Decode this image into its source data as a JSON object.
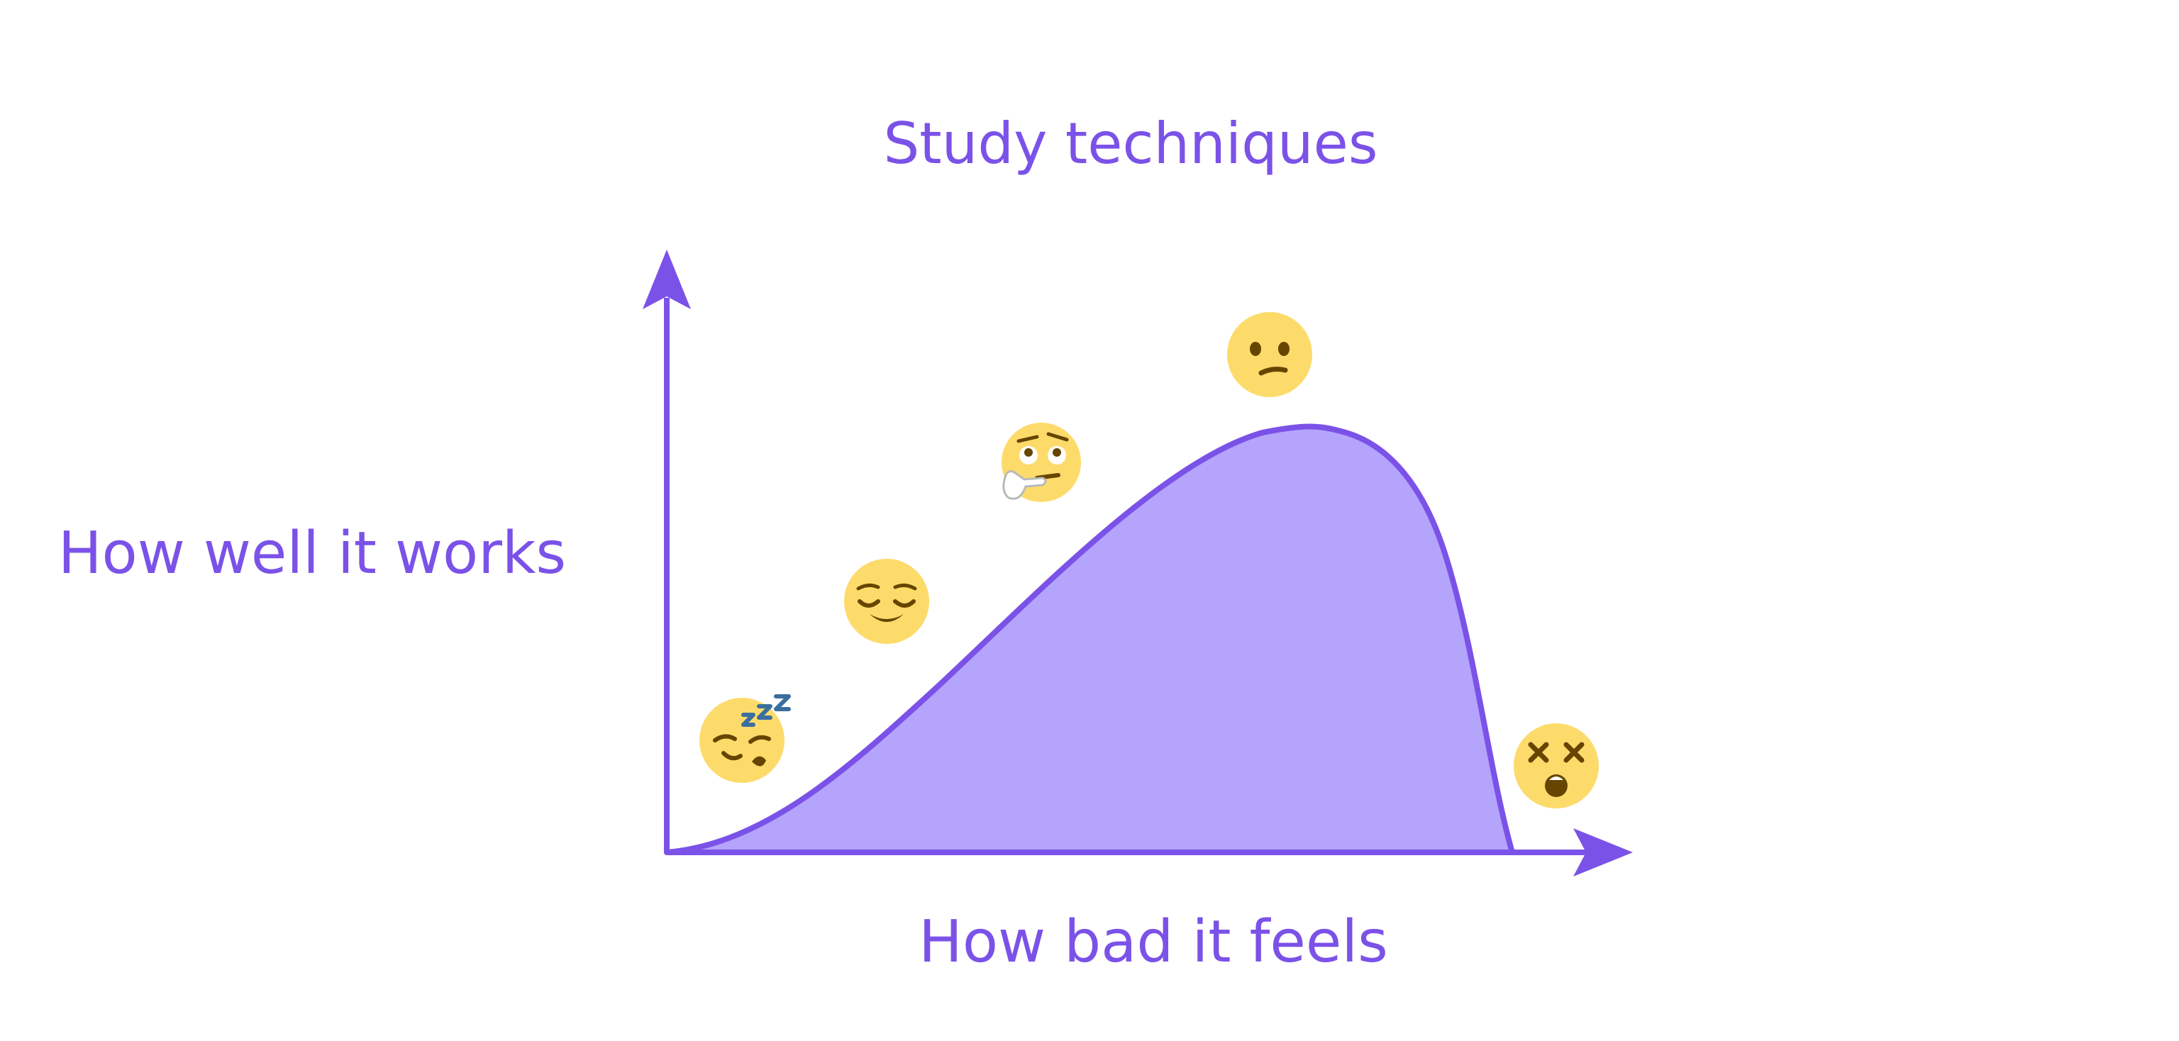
{
  "diagram": {
    "title": "Study techniques",
    "y_axis_label": "How well it works",
    "x_axis_label": "How bad it feels",
    "accent_color": "#7B52E8",
    "fill_color": "#B4A4FC",
    "emoji_face_color": "#FDDB6B",
    "emoji_feature_color": "#664500",
    "emojis": [
      {
        "name": "sleepy-face-icon",
        "meaning": "sleeping"
      },
      {
        "name": "relieved-face-icon",
        "meaning": "relieved"
      },
      {
        "name": "thinking-face-icon",
        "meaning": "thinking"
      },
      {
        "name": "confused-face-icon",
        "meaning": "confused"
      },
      {
        "name": "dizzy-face-icon",
        "meaning": "dizzy"
      }
    ]
  }
}
